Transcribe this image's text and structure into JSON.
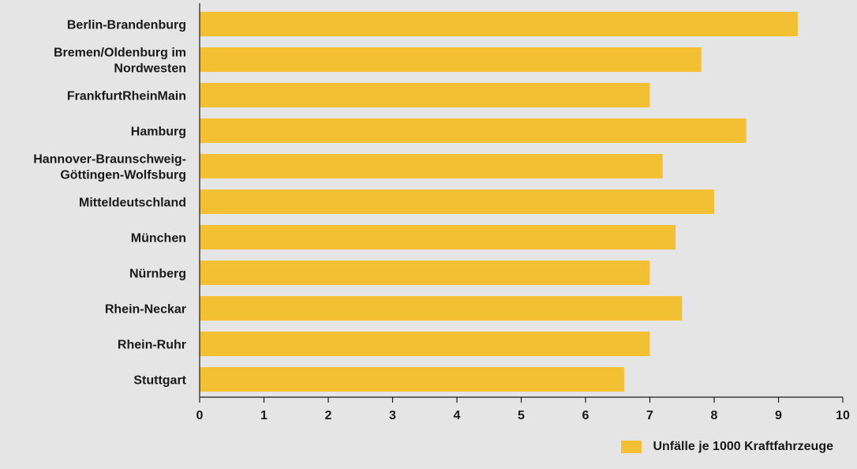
{
  "chart_data": {
    "type": "bar",
    "orientation": "horizontal",
    "categories": [
      [
        "Berlin-Brandenburg"
      ],
      [
        "Bremen/Oldenburg im",
        "Nordwesten"
      ],
      [
        "FrankfurtRheinMain"
      ],
      [
        "Hamburg"
      ],
      [
        "Hannover-Braunschweig-",
        "Göttingen-Wolfsburg"
      ],
      [
        "Mitteldeutschland"
      ],
      [
        "München"
      ],
      [
        "Nürnberg"
      ],
      [
        "Rhein-Neckar"
      ],
      [
        "Rhein-Ruhr"
      ],
      [
        "Stuttgart"
      ]
    ],
    "series": [
      {
        "name": "Unfälle je 1000 Kraftfahrzeuge",
        "values": [
          9.3,
          7.8,
          7.0,
          8.5,
          7.2,
          8.0,
          7.4,
          7.0,
          7.5,
          7.0,
          6.6
        ]
      }
    ],
    "xlim": [
      0,
      10
    ],
    "xticks": [
      "0",
      "1",
      "2",
      "3",
      "4",
      "5",
      "6",
      "7",
      "8",
      "9",
      "10"
    ],
    "grid": false,
    "legend_position": "bottom-right",
    "colors": {
      "bar": "#f4c033",
      "axis": "#1a1a1a",
      "background": "#e5e5e5"
    }
  }
}
